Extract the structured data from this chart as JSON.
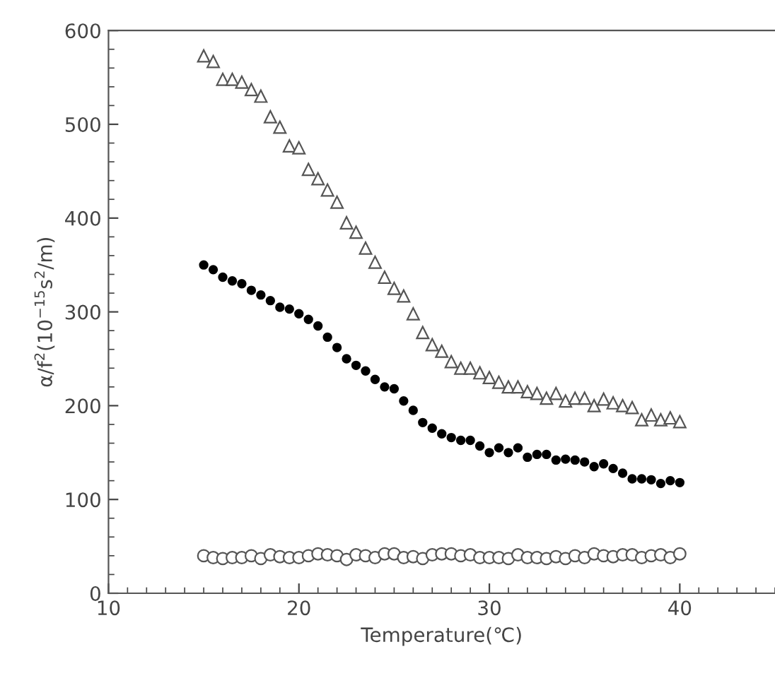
{
  "chart_data": {
    "type": "scatter",
    "xlabel": "Temperature(℃)",
    "ylabel": "α/f$^{2}$(10$^{−15}$s$^{2}$/m)",
    "x": [
      15,
      15.5,
      16,
      16.5,
      17,
      17.5,
      18,
      18.5,
      19,
      19.5,
      20,
      20.5,
      21,
      21.5,
      22,
      22.5,
      23,
      23.5,
      24,
      24.5,
      25,
      25.5,
      26,
      26.5,
      27,
      27.5,
      28,
      28.5,
      29,
      29.5,
      30,
      30.5,
      31,
      31.5,
      32,
      32.5,
      33,
      33.5,
      34,
      34.5,
      35,
      35.5,
      36,
      36.5,
      37,
      37.5,
      38,
      38.5,
      39,
      39.5,
      40
    ],
    "series": [
      {
        "color": "#555555",
        "marker": "triangle",
        "values": [
          573,
          567,
          548,
          548,
          545,
          537,
          530,
          508,
          497,
          477,
          475,
          452,
          442,
          430,
          417,
          395,
          385,
          368,
          353,
          337,
          325,
          317,
          298,
          278,
          265,
          258,
          247,
          240,
          240,
          235,
          230,
          225,
          220,
          220,
          215,
          213,
          208,
          213,
          205,
          208,
          208,
          200,
          207,
          203,
          200,
          198,
          185,
          190,
          185,
          187,
          183
        ]
      },
      {
        "color": "#000000",
        "marker": "circle",
        "values": [
          350,
          345,
          337,
          333,
          330,
          323,
          318,
          312,
          305,
          303,
          298,
          292,
          285,
          273,
          262,
          250,
          243,
          237,
          228,
          220,
          218,
          205,
          195,
          182,
          176,
          170,
          166,
          163,
          163,
          157,
          150,
          155,
          150,
          155,
          145,
          148,
          148,
          142,
          143,
          142,
          140,
          135,
          138,
          133,
          128,
          122,
          122,
          121,
          117,
          120,
          118
        ]
      },
      {
        "color": "#555555",
        "marker": "circle",
        "values": [
          40,
          38,
          37,
          38,
          38,
          40,
          37,
          41,
          39,
          38,
          38,
          40,
          42,
          41,
          40,
          36,
          41,
          40,
          38,
          42,
          42,
          38,
          39,
          37,
          41,
          42,
          42,
          40,
          41,
          38,
          38,
          38,
          37,
          41,
          38,
          38,
          37,
          39,
          37,
          40,
          38,
          42,
          40,
          39,
          41,
          41,
          38,
          40,
          41,
          38,
          42
        ]
      }
    ],
    "xlim": [
      10,
      45
    ],
    "xticks": [
      10,
      20,
      30,
      40
    ],
    "ylim": [
      0,
      600
    ],
    "yticks": [
      0,
      100,
      200,
      300,
      400,
      500,
      600
    ],
    "grid": false,
    "legend": false
  }
}
